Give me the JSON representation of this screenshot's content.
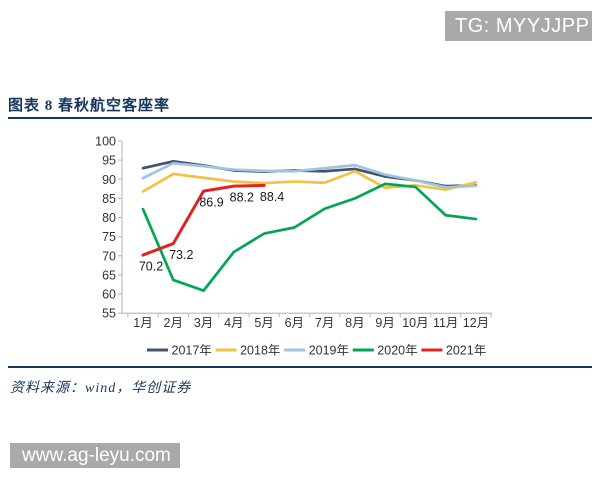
{
  "badges": {
    "telegram": "TG: MYYJJPP",
    "watermark": "www.ag-leyu.com"
  },
  "figure": {
    "title": "图表 8  春秋航空客座率",
    "source": "资料来源：wind，华创证券"
  },
  "chart_data": {
    "type": "line",
    "title": "春秋航空客座率",
    "xlabel": "",
    "ylabel": "",
    "categories": [
      "1月",
      "2月",
      "3月",
      "4月",
      "5月",
      "6月",
      "7月",
      "8月",
      "9月",
      "10月",
      "11月",
      "12月"
    ],
    "ylim": [
      55,
      100
    ],
    "ytick_step": 5,
    "grid": false,
    "legend_position": "bottom",
    "axis_color": "#bfbfbf",
    "tick_label_color": "#333333",
    "point_label_color": "#1a1a1a",
    "series": [
      {
        "name": "2017年",
        "color": "#44546A",
        "show_point_labels": false,
        "values": [
          92.9,
          94.7,
          93.6,
          92.3,
          92.0,
          92.3,
          92.1,
          92.7,
          90.7,
          89.7,
          88.2,
          88.4
        ]
      },
      {
        "name": "2018年",
        "color": "#F2C342",
        "show_point_labels": false,
        "values": [
          86.8,
          91.4,
          90.4,
          89.4,
          89.0,
          89.4,
          89.1,
          92.1,
          87.8,
          88.4,
          87.3,
          89.2
        ]
      },
      {
        "name": "2019年",
        "color": "#9FC3E3",
        "show_point_labels": false,
        "values": [
          90.3,
          94.2,
          93.4,
          92.5,
          92.2,
          92.1,
          92.9,
          93.7,
          91.2,
          89.7,
          87.9,
          88.3
        ]
      },
      {
        "name": "2020年",
        "color": "#00A651",
        "show_point_labels": false,
        "values": [
          82.2,
          63.7,
          60.9,
          71.0,
          75.8,
          77.4,
          82.3,
          85.0,
          88.8,
          88.0,
          80.6,
          79.6
        ]
      },
      {
        "name": "2021年",
        "color": "#E02424",
        "show_point_labels": true,
        "values": [
          70.2,
          73.2,
          86.9,
          88.2,
          88.4
        ],
        "point_labels": [
          "70.2",
          "73.2",
          "86.9",
          "88.2",
          "88.4"
        ]
      }
    ]
  }
}
